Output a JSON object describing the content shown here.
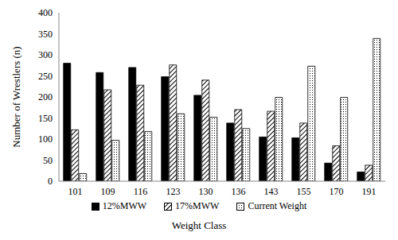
{
  "chart_data": {
    "type": "bar",
    "y_label": "Number of Wrestlers (n)",
    "x_label": "Weight Class",
    "categories": [
      "101",
      "109",
      "116",
      "123",
      "130",
      "136",
      "143",
      "155",
      "170",
      "191"
    ],
    "series": [
      {
        "name": "12%MWW",
        "color": "#000000",
        "values": [
          280,
          258,
          270,
          248,
          204,
          138,
          105,
          103,
          43,
          22
        ]
      },
      {
        "name": "17%MWW",
        "color": "#000000",
        "values": [
          122,
          217,
          228,
          276,
          240,
          170,
          166,
          138,
          84,
          38
        ]
      },
      {
        "name": "Current Weight",
        "color": "#000000",
        "values": [
          18,
          97,
          118,
          160,
          152,
          125,
          199,
          273,
          199,
          339
        ]
      }
    ],
    "ylim": [
      0,
      400
    ],
    "yticks": [
      0,
      50,
      100,
      150,
      200,
      250,
      300,
      350,
      400
    ],
    "grid": false,
    "legend": "bottom"
  }
}
